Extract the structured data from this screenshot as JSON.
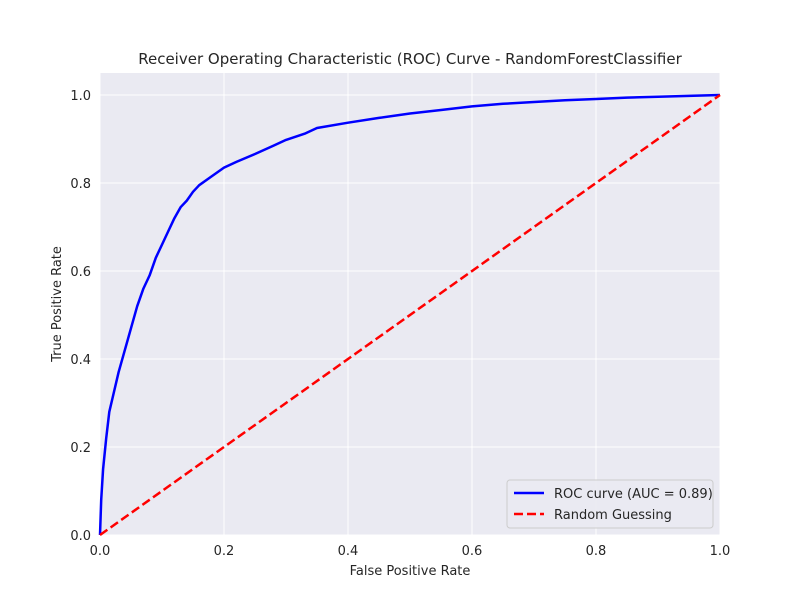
{
  "chart_data": {
    "type": "line",
    "title": "Receiver Operating Characteristic (ROC) Curve - RandomForestClassifier",
    "xlabel": "False Positive Rate",
    "ylabel": "True Positive Rate",
    "xlim": [
      0.0,
      1.0
    ],
    "ylim": [
      0.0,
      1.05
    ],
    "xticks": [
      0.0,
      0.2,
      0.4,
      0.6,
      0.8,
      1.0
    ],
    "yticks": [
      0.0,
      0.2,
      0.4,
      0.6,
      0.8,
      1.0
    ],
    "xtick_labels": [
      "0.0",
      "0.2",
      "0.4",
      "0.6",
      "0.8",
      "1.0"
    ],
    "ytick_labels": [
      "0.0",
      "0.2",
      "0.4",
      "0.6",
      "0.8",
      "1.0"
    ],
    "grid": true,
    "legend_position": "lower-right",
    "series": [
      {
        "name": "ROC curve (AUC = 0.89)",
        "color": "#0000ff",
        "style": "solid",
        "x": [
          0.0,
          0.002,
          0.005,
          0.01,
          0.015,
          0.02,
          0.03,
          0.04,
          0.05,
          0.06,
          0.07,
          0.08,
          0.09,
          0.1,
          0.11,
          0.12,
          0.13,
          0.14,
          0.15,
          0.16,
          0.18,
          0.2,
          0.22,
          0.25,
          0.28,
          0.3,
          0.33,
          0.35,
          0.4,
          0.45,
          0.5,
          0.55,
          0.6,
          0.65,
          0.7,
          0.75,
          0.8,
          0.85,
          0.9,
          0.95,
          1.0
        ],
        "y": [
          0.0,
          0.08,
          0.15,
          0.22,
          0.28,
          0.31,
          0.37,
          0.42,
          0.47,
          0.52,
          0.56,
          0.59,
          0.63,
          0.66,
          0.69,
          0.72,
          0.745,
          0.76,
          0.78,
          0.795,
          0.815,
          0.835,
          0.848,
          0.866,
          0.885,
          0.898,
          0.912,
          0.925,
          0.937,
          0.948,
          0.958,
          0.966,
          0.974,
          0.98,
          0.984,
          0.988,
          0.991,
          0.994,
          0.996,
          0.998,
          1.0
        ]
      },
      {
        "name": "Random Guessing",
        "color": "#ff0000",
        "style": "dashed",
        "x": [
          0.0,
          1.0
        ],
        "y": [
          0.0,
          1.0
        ]
      }
    ]
  }
}
